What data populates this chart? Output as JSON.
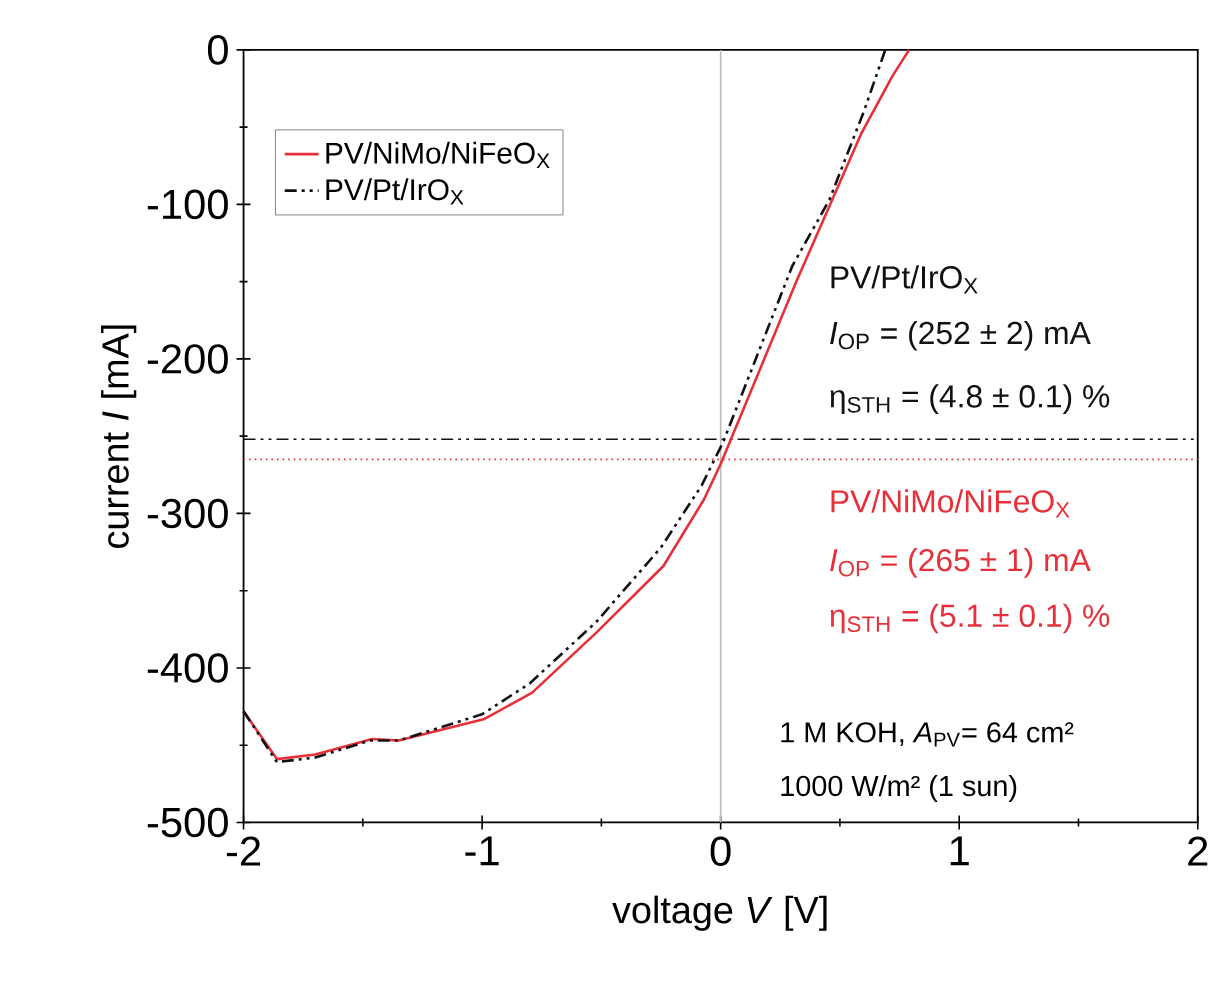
{
  "chart_data": {
    "type": "line",
    "xlabel": "voltage *V* [V]",
    "ylabel": "current *I* [mA]",
    "xlim": [
      -2,
      2
    ],
    "ylim": [
      -500,
      0
    ],
    "xticks": [
      -2,
      -1,
      0,
      1,
      2
    ],
    "yticks": [
      -500,
      -400,
      -300,
      -200,
      -100,
      0
    ],
    "legend": "top left",
    "grid": false,
    "series": [
      {
        "name": "PV/NiMo/NiFeO$_{X}$",
        "color": "#e8303a",
        "line_style": "solid",
        "x": [
          -2,
          -1.86,
          -1.7,
          -1.46,
          -1.35,
          -0.99,
          -0.79,
          -0.52,
          -0.24,
          -0.07,
          0.0,
          0.32,
          0.59,
          0.72,
          0.79
        ],
        "values": [
          -428,
          -459,
          -456,
          -446,
          -447,
          -433,
          -416,
          -377,
          -334,
          -291,
          -268,
          -149,
          -54,
          -17,
          0
        ]
      },
      {
        "name": "PV/Pt/IrO$_{X}$",
        "color": "#111111",
        "line_style": "dashdotdotted",
        "x": [
          -2,
          -1.86,
          -1.7,
          -1.47,
          -1.35,
          -1.0,
          -0.8,
          -0.52,
          -0.25,
          -0.08,
          0.01,
          0.3,
          0.456,
          0.6,
          0.69
        ],
        "values": [
          -428,
          -461,
          -458,
          -447,
          -447,
          -430,
          -410,
          -370,
          -322,
          -282,
          -254,
          -140,
          -97,
          -40,
          0
        ]
      }
    ],
    "ref_lines": [
      {
        "axis": "x",
        "value": 0,
        "color": "#bbbbbb",
        "line_style": "solid"
      },
      {
        "axis": "y",
        "value": -252,
        "color": "#111111",
        "line_style": "dashdotdotted"
      },
      {
        "axis": "y",
        "value": -265,
        "color": "#e8303a",
        "line_style": "dotted"
      }
    ],
    "annotations": [
      "PV/Pt/IrO$_{X}$",
      "*I*$_{OP}$ = (252 ± 2) mA",
      "η$_{STH}$ = (4.8 ± 0.1) %",
      "PV/NiMo/NiFeO$_{X}$",
      "*I*$_{OP}$ = (265 ± 1) mA",
      "η$_{STH}$ = (5.1 ± 0.1) %",
      "1 M KOH, *A*$_{PV}$= 64 cm²",
      "1000 W/m² (1 sun)"
    ]
  }
}
